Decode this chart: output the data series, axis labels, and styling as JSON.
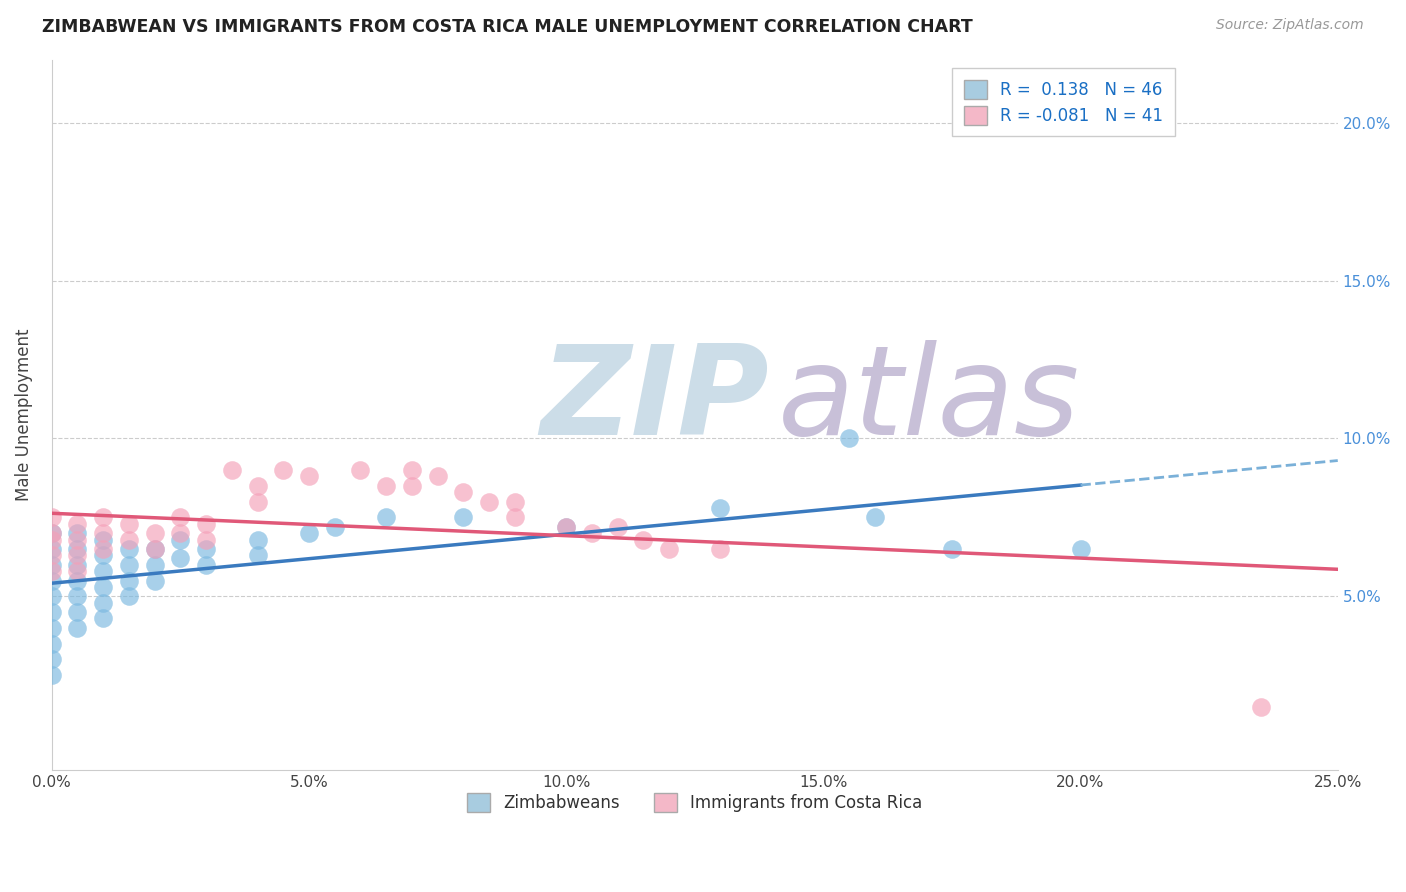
{
  "title": "ZIMBABWEAN VS IMMIGRANTS FROM COSTA RICA MALE UNEMPLOYMENT CORRELATION CHART",
  "source": "Source: ZipAtlas.com",
  "ylabel": "Male Unemployment",
  "xlim": [
    0.0,
    0.25
  ],
  "ylim": [
    -0.005,
    0.22
  ],
  "xticks": [
    0.0,
    0.05,
    0.1,
    0.15,
    0.2,
    0.25
  ],
  "yticks": [
    0.05,
    0.1,
    0.15,
    0.2
  ],
  "ytick_labels": [
    "5.0%",
    "10.0%",
    "15.0%",
    "20.0%"
  ],
  "xtick_labels": [
    "0.0%",
    "5.0%",
    "10.0%",
    "15.0%",
    "20.0%",
    "25.0%"
  ],
  "blue_scatter_color": "#7ab8e0",
  "pink_scatter_color": "#f4a0b8",
  "blue_line_solid_color": "#3a7abf",
  "blue_line_dash_color": "#7ab0d8",
  "pink_line_color": "#e05878",
  "watermark_zip_color": "#d8e8f0",
  "watermark_atlas_color": "#d0c8e0",
  "background_color": "#ffffff",
  "grid_color": "#cccccc",
  "right_tick_color": "#4a90d9",
  "legend_blue_color": "#a8cce0",
  "legend_pink_color": "#f4b8c8",
  "zimbabwean_x": [
    0.0,
    0.0,
    0.0,
    0.0,
    0.0,
    0.0,
    0.0,
    0.0,
    0.0,
    0.0,
    0.005,
    0.005,
    0.005,
    0.005,
    0.005,
    0.005,
    0.005,
    0.01,
    0.01,
    0.01,
    0.01,
    0.01,
    0.01,
    0.015,
    0.015,
    0.015,
    0.015,
    0.02,
    0.02,
    0.02,
    0.025,
    0.025,
    0.03,
    0.03,
    0.04,
    0.04,
    0.05,
    0.055,
    0.065,
    0.08,
    0.1,
    0.13,
    0.155,
    0.16,
    0.175,
    0.2
  ],
  "zimbabwean_y": [
    0.07,
    0.065,
    0.06,
    0.055,
    0.05,
    0.045,
    0.04,
    0.035,
    0.03,
    0.025,
    0.07,
    0.065,
    0.06,
    0.055,
    0.05,
    0.045,
    0.04,
    0.068,
    0.063,
    0.058,
    0.053,
    0.048,
    0.043,
    0.065,
    0.06,
    0.055,
    0.05,
    0.065,
    0.06,
    0.055,
    0.068,
    0.062,
    0.065,
    0.06,
    0.068,
    0.063,
    0.07,
    0.072,
    0.075,
    0.075,
    0.072,
    0.078,
    0.1,
    0.075,
    0.065,
    0.065
  ],
  "costarica_x": [
    0.0,
    0.0,
    0.0,
    0.0,
    0.0,
    0.005,
    0.005,
    0.005,
    0.005,
    0.01,
    0.01,
    0.01,
    0.015,
    0.015,
    0.02,
    0.02,
    0.025,
    0.025,
    0.03,
    0.03,
    0.035,
    0.04,
    0.04,
    0.045,
    0.05,
    0.06,
    0.065,
    0.07,
    0.07,
    0.075,
    0.08,
    0.085,
    0.09,
    0.09,
    0.1,
    0.105,
    0.11,
    0.115,
    0.12,
    0.13,
    0.235
  ],
  "costarica_y": [
    0.075,
    0.07,
    0.068,
    0.063,
    0.058,
    0.073,
    0.068,
    0.063,
    0.058,
    0.075,
    0.07,
    0.065,
    0.073,
    0.068,
    0.07,
    0.065,
    0.075,
    0.07,
    0.073,
    0.068,
    0.09,
    0.085,
    0.08,
    0.09,
    0.088,
    0.09,
    0.085,
    0.09,
    0.085,
    0.088,
    0.083,
    0.08,
    0.08,
    0.075,
    0.072,
    0.07,
    0.072,
    0.068,
    0.065,
    0.065,
    0.015
  ],
  "r_blue": "0.138",
  "n_blue": "46",
  "r_pink": "-0.081",
  "n_pink": "41"
}
